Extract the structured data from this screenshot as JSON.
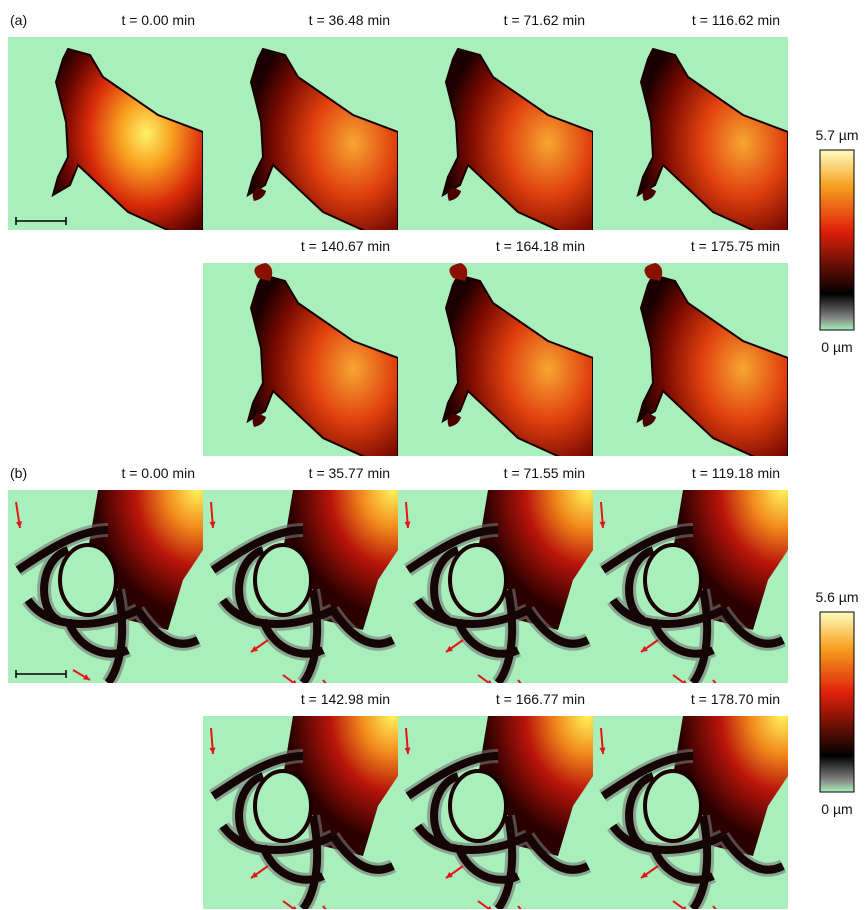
{
  "panels": [
    {
      "label": "(a)",
      "frames": [
        {
          "time": "t = 0.00 min"
        },
        {
          "time": "t = 36.48 min"
        },
        {
          "time": "t = 71.62 min"
        },
        {
          "time": "t = 116.62 min"
        },
        {
          "time": "t = 140.67 min"
        },
        {
          "time": "t = 164.18 min"
        },
        {
          "time": "t = 175.75 min"
        }
      ],
      "colorbar": {
        "max_label": "5.7 µm",
        "min_label": "0 µm"
      }
    },
    {
      "label": "(b)",
      "frames": [
        {
          "time": "t = 0.00 min"
        },
        {
          "time": "t = 35.77 min"
        },
        {
          "time": "t = 71.55 min"
        },
        {
          "time": "t = 119.18 min"
        },
        {
          "time": "t = 142.98 min"
        },
        {
          "time": "t = 166.77 min"
        },
        {
          "time": "t = 178.70 min"
        }
      ],
      "colorbar": {
        "max_label": "5.6 µm",
        "min_label": "0 µm"
      }
    }
  ]
}
